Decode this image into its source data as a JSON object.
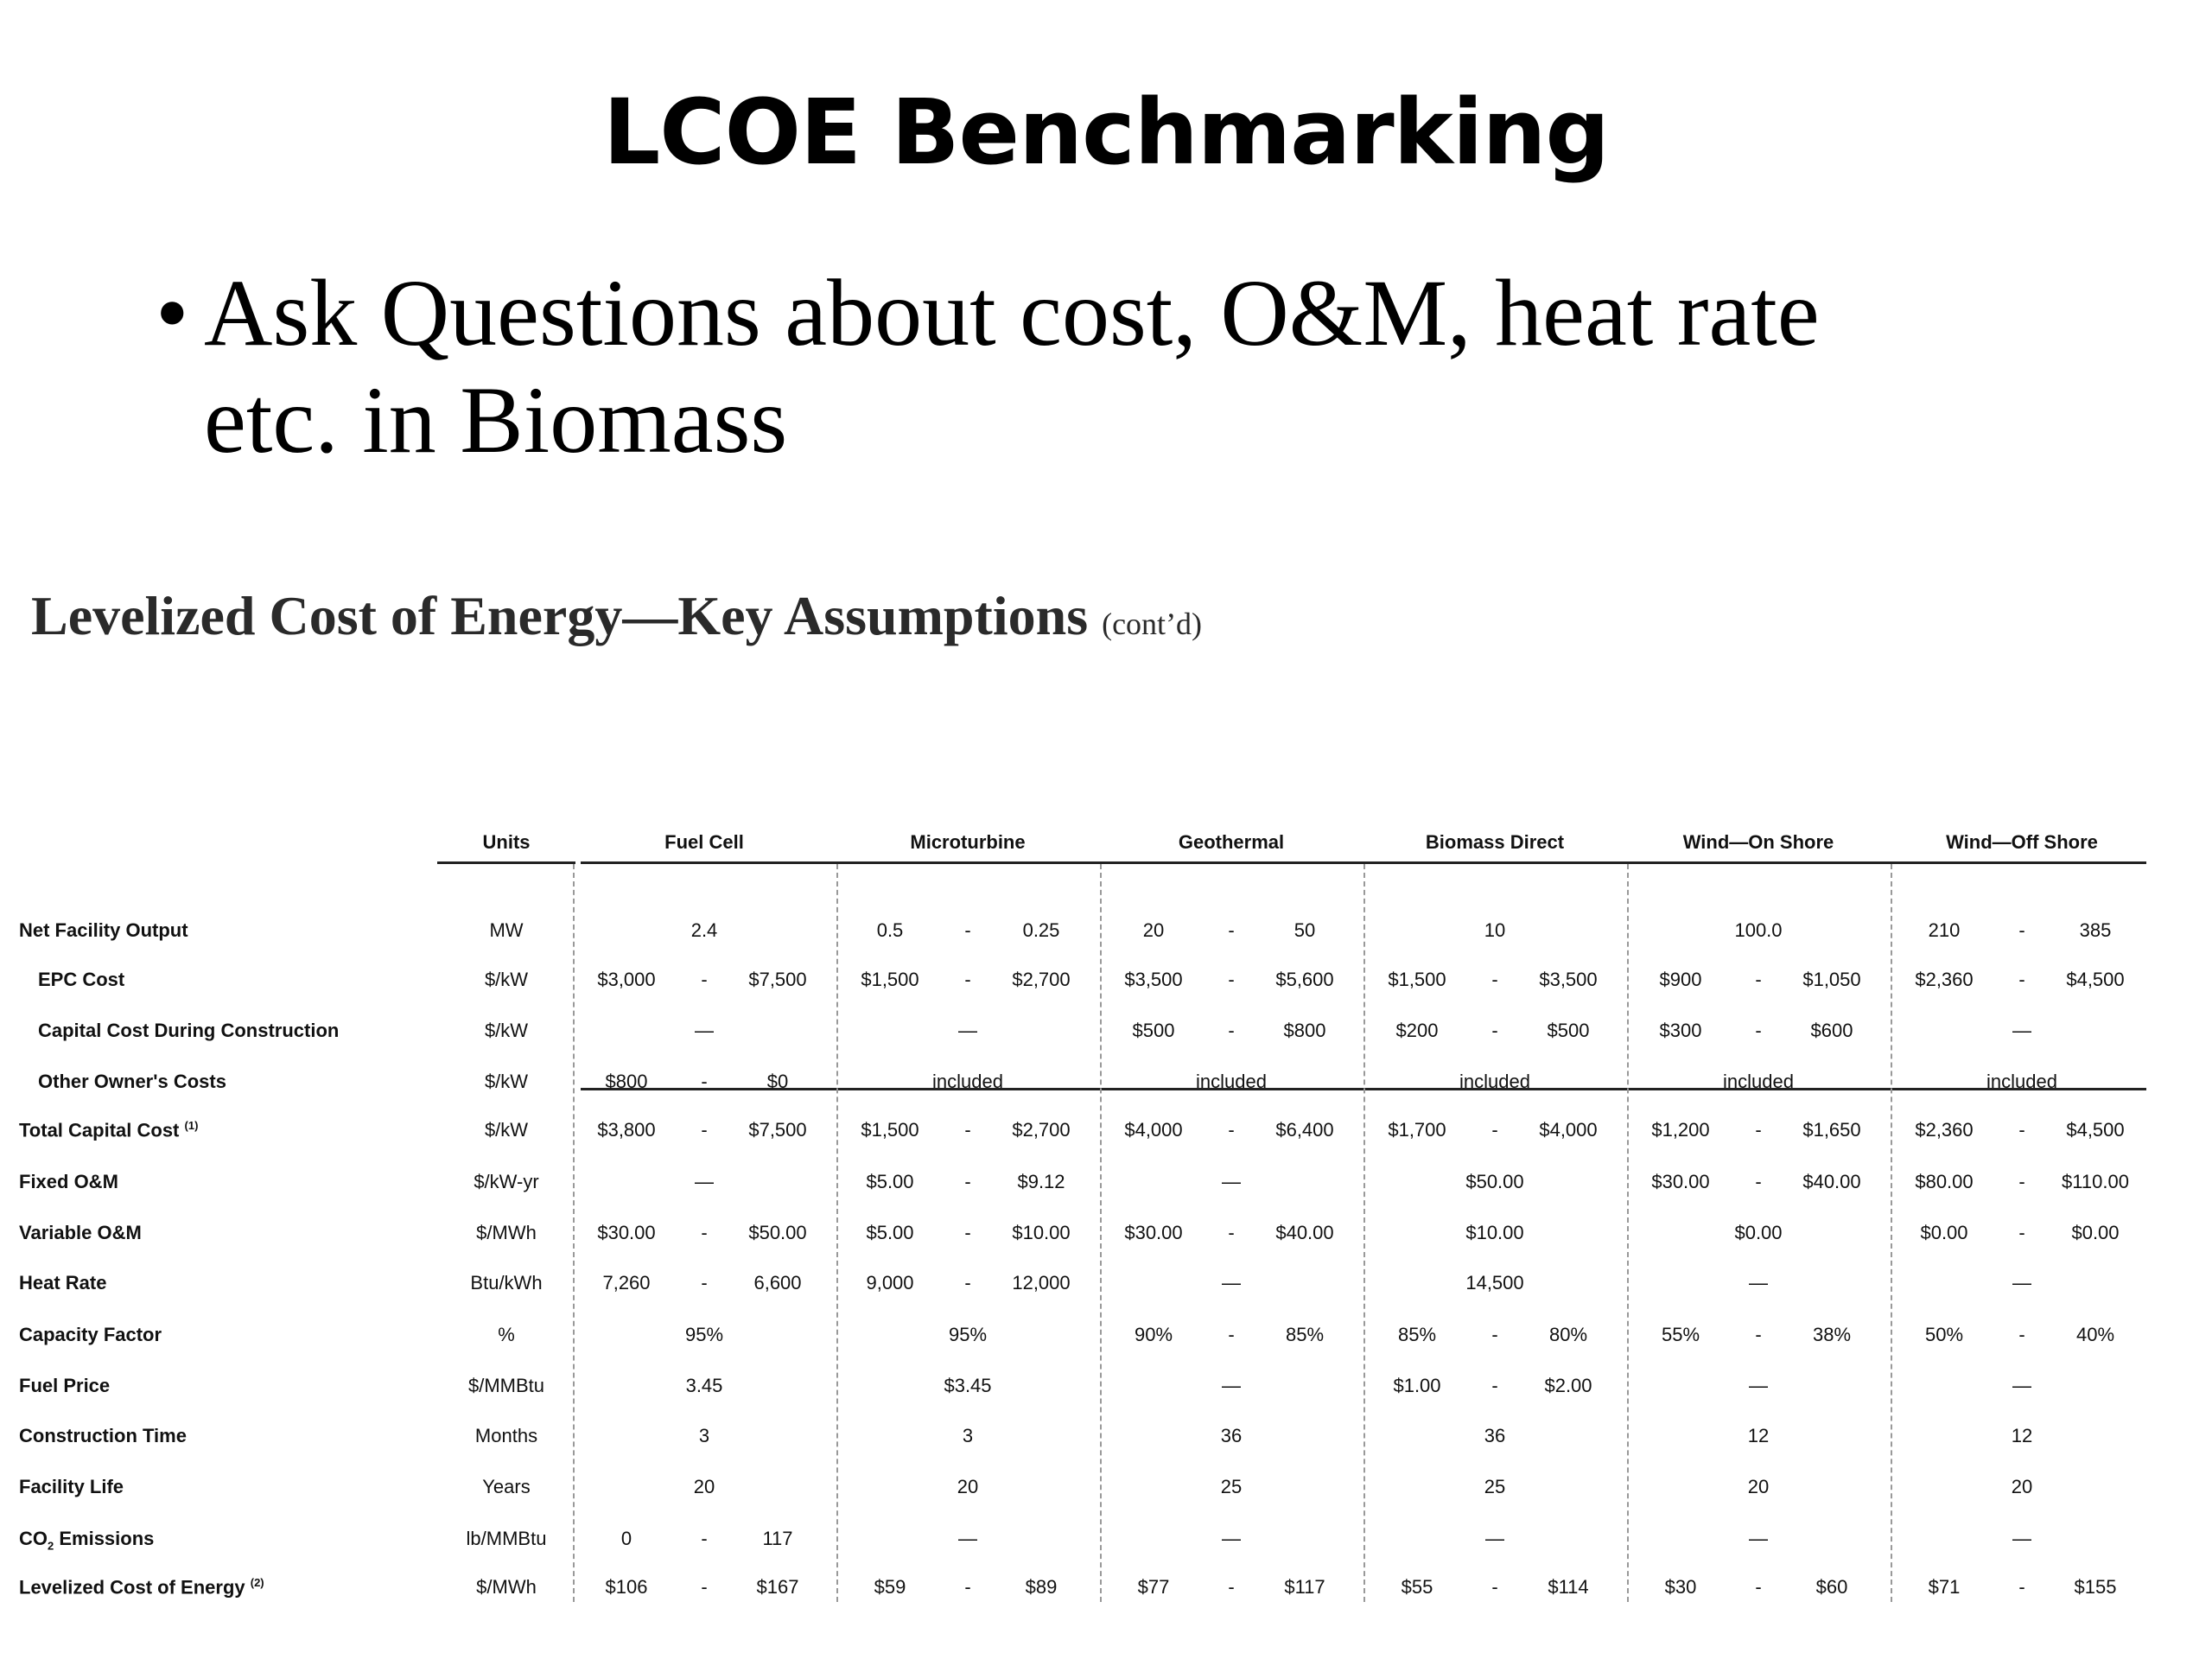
{
  "slide": {
    "title": "LCOE Benchmarking",
    "bullet_line1": "Ask Questions about cost, O&M, heat rate",
    "bullet_line2": "etc. in Biomass"
  },
  "table": {
    "title": "Levelized Cost of Energy—Key Assumptions",
    "title_suffix": "(cont’d)",
    "units_header": "Units",
    "columns": [
      "Fuel Cell",
      "Microturbine",
      "Geothermal",
      "Biomass Direct",
      "Wind—On Shore",
      "Wind—Off Shore"
    ],
    "rows": [
      {
        "label": "Net Facility Output",
        "unit": "MW",
        "values": [
          [
            "2.4"
          ],
          [
            "0.5",
            "0.25"
          ],
          [
            "20",
            "50"
          ],
          [
            "10"
          ],
          [
            "100.0"
          ],
          [
            "210",
            "385"
          ]
        ]
      },
      {
        "label": "EPC Cost",
        "unit": "$/kW",
        "values": [
          [
            "$3,000",
            "$7,500"
          ],
          [
            "$1,500",
            "$2,700"
          ],
          [
            "$3,500",
            "$5,600"
          ],
          [
            "$1,500",
            "$3,500"
          ],
          [
            "$900",
            "$1,050"
          ],
          [
            "$2,360",
            "$4,500"
          ]
        ]
      },
      {
        "label": "Capital Cost During Construction",
        "unit": "$/kW",
        "values": [
          [
            "—"
          ],
          [
            "—"
          ],
          [
            "$500",
            "$800"
          ],
          [
            "$200",
            "$500"
          ],
          [
            "$300",
            "$600"
          ],
          [
            "—"
          ]
        ]
      },
      {
        "label": "Other Owner's Costs",
        "unit": "$/kW",
        "values": [
          [
            "$800",
            "$0"
          ],
          [
            "included"
          ],
          [
            "included"
          ],
          [
            "included"
          ],
          [
            "included"
          ],
          [
            "included"
          ]
        ]
      },
      {
        "label": "Total Capital Cost",
        "sup": "(1)",
        "unit": "$/kW",
        "values": [
          [
            "$3,800",
            "$7,500"
          ],
          [
            "$1,500",
            "$2,700"
          ],
          [
            "$4,000",
            "$6,400"
          ],
          [
            "$1,700",
            "$4,000"
          ],
          [
            "$1,200",
            "$1,650"
          ],
          [
            "$2,360",
            "$4,500"
          ]
        ]
      },
      {
        "label": "Fixed O&M",
        "unit": "$/kW-yr",
        "values": [
          [
            "—"
          ],
          [
            "$5.00",
            "$9.12"
          ],
          [
            "—"
          ],
          [
            "$50.00"
          ],
          [
            "$30.00",
            "$40.00"
          ],
          [
            "$80.00",
            "$110.00"
          ]
        ]
      },
      {
        "label": "Variable O&M",
        "unit": "$/MWh",
        "values": [
          [
            "$30.00",
            "$50.00"
          ],
          [
            "$5.00",
            "$10.00"
          ],
          [
            "$30.00",
            "$40.00"
          ],
          [
            "$10.00"
          ],
          [
            "$0.00"
          ],
          [
            "$0.00",
            "$0.00"
          ]
        ]
      },
      {
        "label": "Heat Rate",
        "unit": "Btu/kWh",
        "values": [
          [
            "7,260",
            "6,600"
          ],
          [
            "9,000",
            "12,000"
          ],
          [
            "—"
          ],
          [
            "14,500"
          ],
          [
            "—"
          ],
          [
            "—"
          ]
        ]
      },
      {
        "label": "Capacity Factor",
        "unit": "%",
        "values": [
          [
            "95%"
          ],
          [
            "95%"
          ],
          [
            "90%",
            "85%"
          ],
          [
            "85%",
            "80%"
          ],
          [
            "55%",
            "38%"
          ],
          [
            "50%",
            "40%"
          ]
        ]
      },
      {
        "label": "Fuel Price",
        "unit": "$/MMBtu",
        "values": [
          [
            "3.45"
          ],
          [
            "$3.45"
          ],
          [
            "—"
          ],
          [
            "$1.00",
            "$2.00"
          ],
          [
            "—"
          ],
          [
            "—"
          ]
        ]
      },
      {
        "label": "Construction Time",
        "unit": "Months",
        "values": [
          [
            "3"
          ],
          [
            "3"
          ],
          [
            "36"
          ],
          [
            "36"
          ],
          [
            "12"
          ],
          [
            "12"
          ]
        ]
      },
      {
        "label": "Facility Life",
        "unit": "Years",
        "values": [
          [
            "20"
          ],
          [
            "20"
          ],
          [
            "25"
          ],
          [
            "25"
          ],
          [
            "20"
          ],
          [
            "20"
          ]
        ]
      },
      {
        "label": "CO",
        "label_sub": "2",
        "label_rest": " Emissions",
        "unit": "lb/MMBtu",
        "values": [
          [
            "0",
            "117"
          ],
          [
            "—"
          ],
          [
            "—"
          ],
          [
            "—"
          ],
          [
            "—"
          ],
          [
            "—"
          ]
        ]
      },
      {
        "label": "Levelized Cost of Energy",
        "sup": "(2)",
        "unit": "$/MWh",
        "values": [
          [
            "$106",
            "$167"
          ],
          [
            "$59",
            "$89"
          ],
          [
            "$77",
            "$117"
          ],
          [
            "$55",
            "$114"
          ],
          [
            "$30",
            "$60"
          ],
          [
            "$71",
            "$155"
          ]
        ]
      }
    ]
  }
}
